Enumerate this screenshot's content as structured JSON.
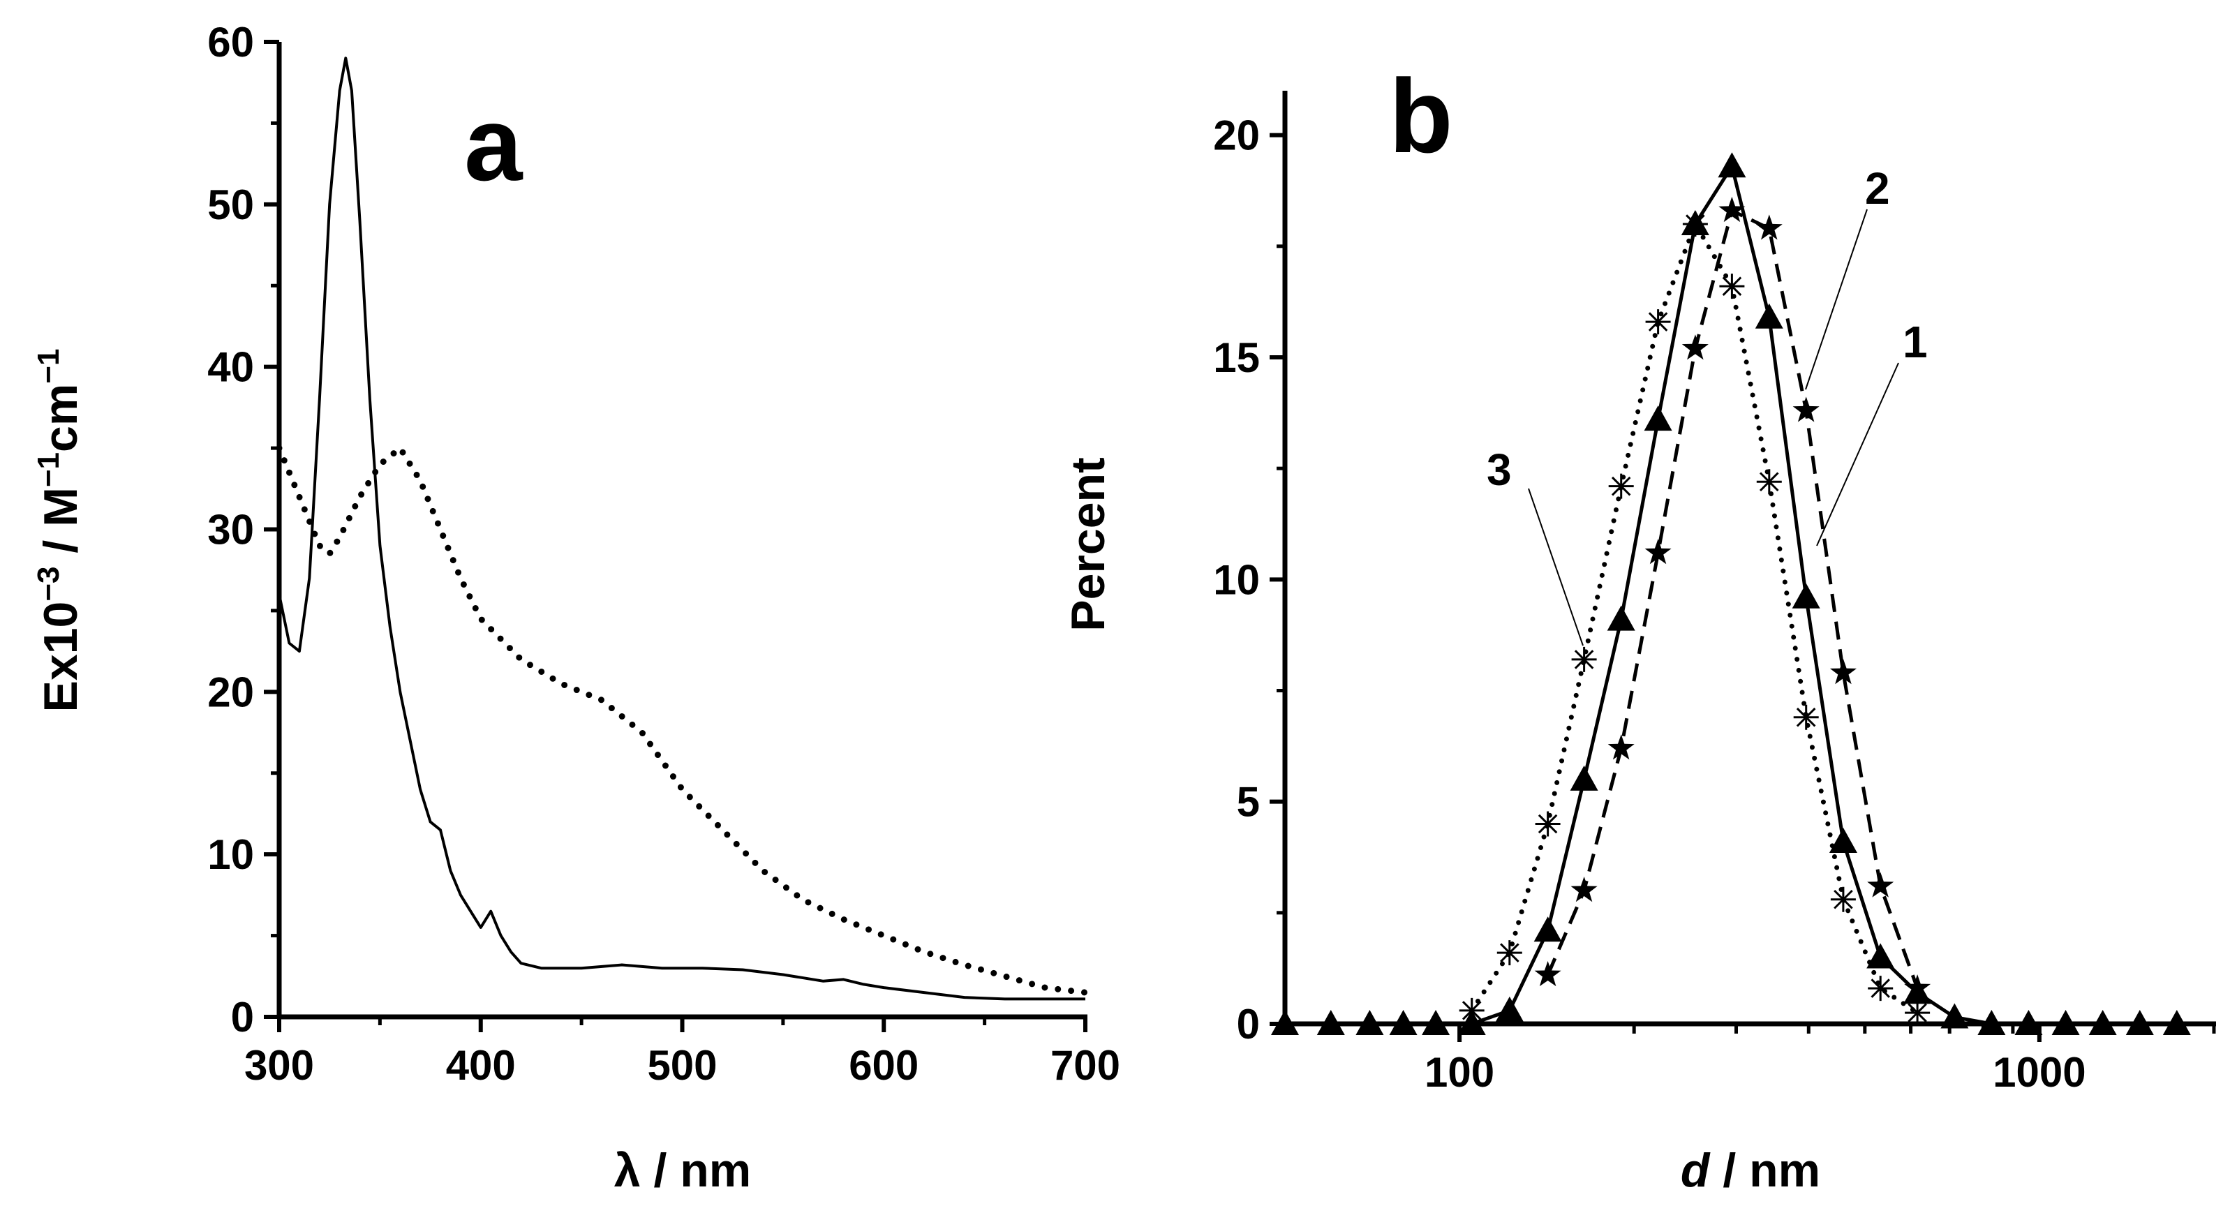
{
  "chart_data": [
    {
      "type": "line",
      "panel_label": "a",
      "xlabel": "λ / nm",
      "ylabel": "Ex10",
      "ylabel_parts": {
        "base": "Ex10",
        "exp1": "−3",
        "mid": " / M",
        "exp2": "−1",
        "unit": "cm",
        "exp3": "−1"
      },
      "xlim": [
        300,
        700
      ],
      "ylim": [
        0,
        60
      ],
      "xticks": [
        300,
        400,
        500,
        600,
        700
      ],
      "yticks": [
        0,
        10,
        20,
        30,
        40,
        50,
        60
      ],
      "series": [
        {
          "name": "solid",
          "style": "solid",
          "x": [
            300,
            305,
            310,
            315,
            320,
            325,
            330,
            333,
            336,
            340,
            345,
            350,
            355,
            360,
            365,
            370,
            375,
            380,
            385,
            390,
            395,
            400,
            405,
            410,
            415,
            420,
            430,
            450,
            470,
            490,
            510,
            530,
            550,
            570,
            580,
            590,
            600,
            620,
            640,
            660,
            680,
            700
          ],
          "y": [
            26,
            23,
            22.5,
            27,
            38,
            50,
            57,
            59,
            57,
            49,
            38,
            29,
            24,
            20,
            17,
            14,
            12,
            11.5,
            9,
            7.5,
            6.5,
            5.5,
            6.5,
            5,
            4,
            3.3,
            3,
            3,
            3.2,
            3,
            3,
            2.9,
            2.6,
            2.2,
            2.3,
            2,
            1.8,
            1.5,
            1.2,
            1.1,
            1.1,
            1.1
          ]
        },
        {
          "name": "dotted",
          "style": "dotted",
          "x": [
            300,
            310,
            320,
            325,
            330,
            340,
            350,
            360,
            370,
            380,
            390,
            400,
            420,
            440,
            460,
            480,
            500,
            520,
            540,
            560,
            580,
            600,
            620,
            640,
            660,
            680,
            700
          ],
          "y": [
            35,
            32,
            29,
            28.5,
            29.5,
            32,
            34,
            35,
            33,
            30,
            27,
            24.5,
            22,
            20.5,
            19.5,
            17.5,
            14,
            11.5,
            9,
            7.2,
            6,
            5,
            4,
            3.2,
            2.5,
            1.8,
            1.5
          ]
        }
      ]
    },
    {
      "type": "line",
      "panel_label": "b",
      "xlabel_italic": "d",
      "xlabel_rest": " / nm",
      "ylabel": "Percent",
      "xscale": "log",
      "xlim": [
        50,
        2000
      ],
      "ylim": [
        0,
        21
      ],
      "xticks": [
        100,
        1000
      ],
      "yticks": [
        0,
        5,
        10,
        15,
        20
      ],
      "series": [
        {
          "name": "1",
          "style": "solid",
          "marker": "triangle",
          "x": [
            50,
            60,
            70,
            80,
            91,
            105,
            122,
            142,
            164,
            190,
            220,
            255,
            295,
            342,
            396,
            459,
            532,
            616,
            714,
            827,
            958,
            1110,
            1286,
            1490,
            1726
          ],
          "y": [
            0,
            0,
            0,
            0,
            0,
            0,
            0.3,
            2.1,
            5.5,
            9.1,
            13.6,
            18.0,
            19.3,
            15.9,
            9.6,
            4.1,
            1.5,
            0.7,
            0.15,
            0,
            0,
            0,
            0,
            0,
            0
          ]
        },
        {
          "name": "2",
          "style": "dashed",
          "marker": "star",
          "x": [
            142,
            164,
            190,
            220,
            255,
            295,
            342,
            396,
            459,
            532,
            616
          ],
          "y": [
            1.1,
            3.0,
            6.2,
            10.6,
            15.2,
            18.3,
            17.9,
            13.8,
            7.9,
            3.1,
            0.8
          ]
        },
        {
          "name": "3",
          "style": "dotted",
          "marker": "asterisk",
          "x": [
            105,
            122,
            142,
            164,
            190,
            220,
            255,
            295,
            342,
            396,
            459,
            532,
            616
          ],
          "y": [
            0.3,
            1.6,
            4.5,
            8.2,
            12.1,
            15.8,
            18.0,
            16.6,
            12.2,
            6.9,
            2.8,
            0.8,
            0.25
          ]
        }
      ],
      "annotations": [
        "1",
        "2",
        "3"
      ]
    }
  ]
}
